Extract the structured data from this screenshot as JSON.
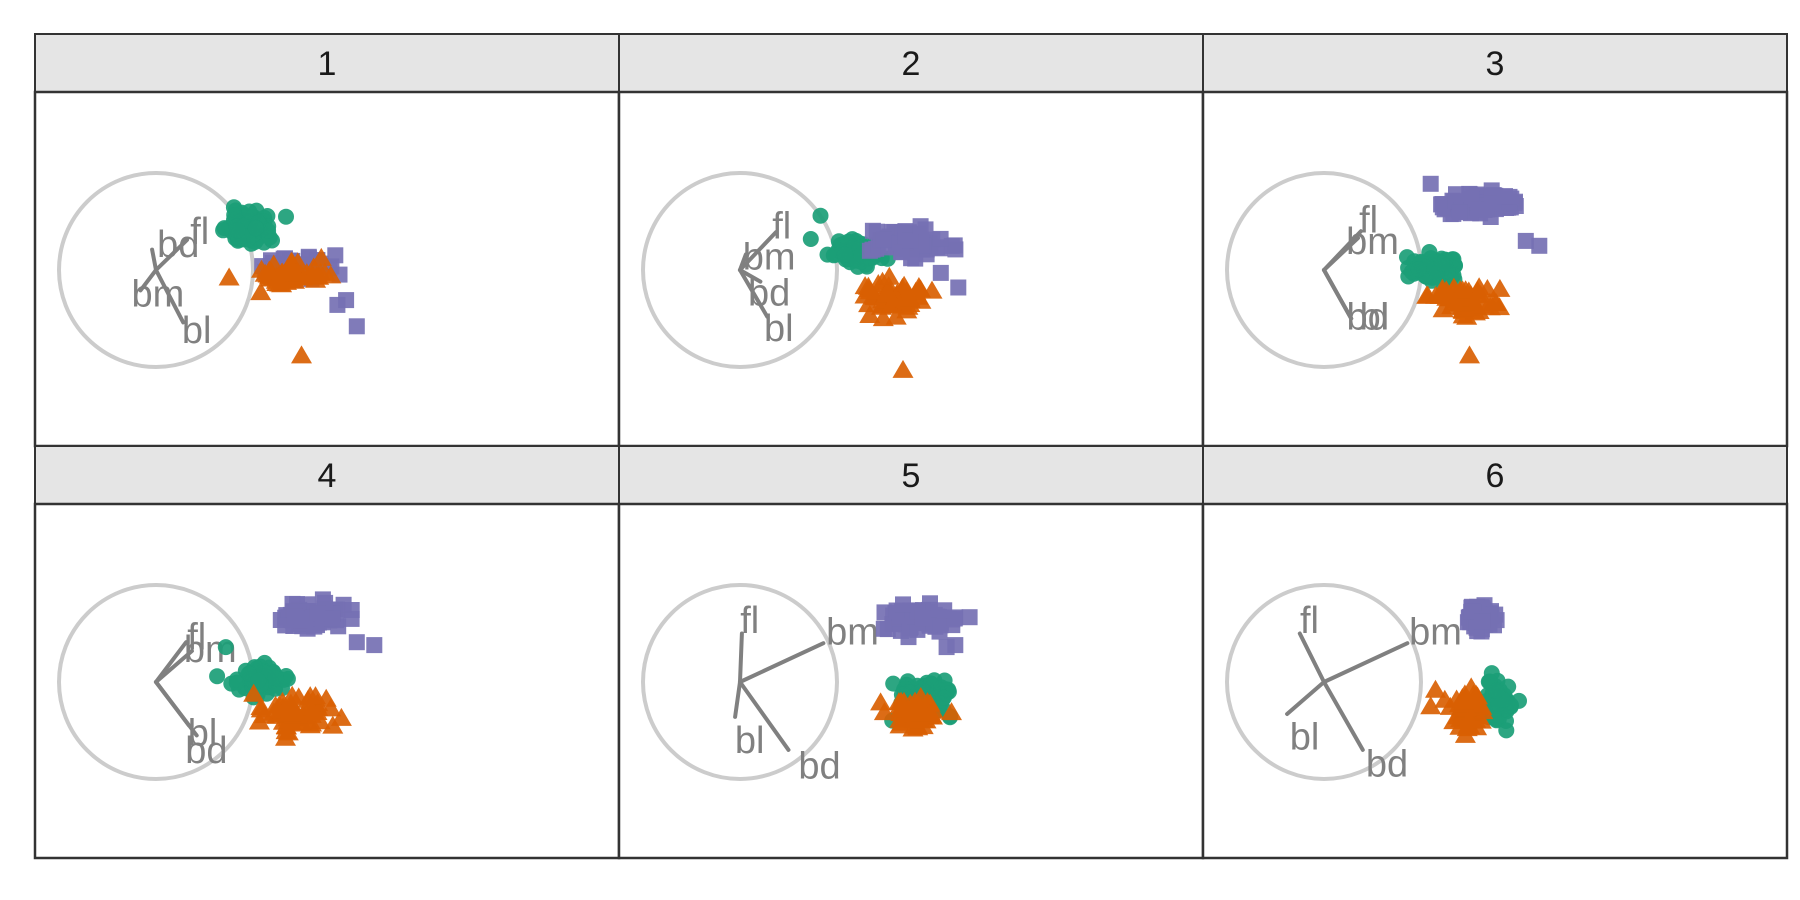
{
  "chart_data": {
    "type": "scatter",
    "facet_layout": "2x3",
    "x_range": [
      -1,
      1
    ],
    "y_range": [
      -1,
      1
    ],
    "grid": false,
    "legend": "none",
    "groups": [
      {
        "shape": "circle",
        "color": "#1b9e77"
      },
      {
        "shape": "triangle",
        "color": "#d95f02"
      },
      {
        "shape": "square",
        "color": "#7570b3"
      }
    ],
    "axis_circle_color": "#cccccc",
    "axis_line_color": "#808080",
    "panels": [
      {
        "label": "1",
        "axes": [
          {
            "name": "fl",
            "end": [
              0.32,
              0.31
            ],
            "label_pos": [
              0.45,
              0.4
            ]
          },
          {
            "name": "bd",
            "end": [
              -0.04,
              0.21
            ],
            "label_pos": [
              0.23,
              0.27
            ]
          },
          {
            "name": "bm",
            "end": [
              -0.16,
              -0.21
            ],
            "label_pos": [
              0.02,
              -0.24
            ]
          },
          {
            "name": "bl",
            "end": [
              0.28,
              -0.54
            ],
            "label_pos": [
              0.42,
              -0.62
            ]
          }
        ],
        "clusters": [
          {
            "group": 0,
            "center": [
              0.95,
              0.44
            ],
            "spread": [
              0.2,
              0.16
            ],
            "n": 95
          },
          {
            "group": 2,
            "center": [
              1.45,
              0.03
            ],
            "spread": [
              0.34,
              0.1
            ],
            "n": 60
          },
          {
            "group": 1,
            "center": [
              1.4,
              -0.05
            ],
            "spread": [
              0.3,
              0.12
            ],
            "n": 55
          }
        ],
        "extra_points": [
          {
            "group": 2,
            "x": [
              2.07,
              1.96,
              1.87
            ],
            "y": [
              -0.58,
              -0.31,
              -0.36
            ]
          },
          {
            "group": 1,
            "x": [
              1.5
            ],
            "y": [
              -0.88
            ]
          }
        ]
      },
      {
        "label": "2",
        "axes": [
          {
            "name": "fl",
            "end": [
              0.37,
              0.39
            ],
            "label_pos": [
              0.43,
              0.46
            ]
          },
          {
            "name": "bm",
            "end": [
              0.06,
              0.16
            ],
            "label_pos": [
              0.3,
              0.14
            ]
          },
          {
            "name": "bd",
            "end": [
              0.21,
              -0.12
            ],
            "label_pos": [
              0.3,
              -0.23
            ]
          },
          {
            "name": "bl",
            "end": [
              0.28,
              -0.48
            ],
            "label_pos": [
              0.4,
              -0.6
            ]
          }
        ],
        "clusters": [
          {
            "group": 0,
            "center": [
              1.2,
              0.18
            ],
            "spread": [
              0.22,
              0.12
            ],
            "n": 85
          },
          {
            "group": 2,
            "center": [
              1.72,
              0.28
            ],
            "spread": [
              0.3,
              0.13
            ],
            "n": 75
          },
          {
            "group": 1,
            "center": [
              1.63,
              -0.28
            ],
            "spread": [
              0.28,
              0.14
            ],
            "n": 60
          }
        ],
        "extra_points": [
          {
            "group": 2,
            "x": [
              2.25,
              2.07
            ],
            "y": [
              -0.18,
              -0.03
            ]
          },
          {
            "group": 0,
            "x": [
              0.83,
              0.73
            ],
            "y": [
              0.56,
              0.32
            ]
          },
          {
            "group": 1,
            "x": [
              1.68
            ],
            "y": [
              -1.03
            ]
          }
        ]
      },
      {
        "label": "3",
        "axes": [
          {
            "name": "fl",
            "end": [
              0.38,
              0.4
            ],
            "label_pos": [
              0.46,
              0.52
            ]
          },
          {
            "name": "bm",
            "end": [
              0.35,
              0.33
            ],
            "label_pos": [
              0.5,
              0.3
            ]
          },
          {
            "name": "bd",
            "end": [
              0.28,
              -0.5
            ],
            "label_pos": [
              0.45,
              -0.48
            ]
          },
          {
            "name": "bl",
            "end": [
              0.28,
              -0.5
            ],
            "label_pos": [
              0.52,
              -0.48
            ]
          }
        ],
        "clusters": [
          {
            "group": 2,
            "center": [
              1.62,
              0.68
            ],
            "spread": [
              0.32,
              0.12
            ],
            "n": 85
          },
          {
            "group": 0,
            "center": [
              1.15,
              0.0
            ],
            "spread": [
              0.22,
              0.12
            ],
            "n": 85
          },
          {
            "group": 1,
            "center": [
              1.45,
              -0.3
            ],
            "spread": [
              0.3,
              0.14
            ],
            "n": 60
          }
        ],
        "extra_points": [
          {
            "group": 2,
            "x": [
              2.22,
              2.08
            ],
            "y": [
              0.25,
              0.3
            ]
          },
          {
            "group": 1,
            "x": [
              1.5
            ],
            "y": [
              -0.88
            ]
          }
        ]
      },
      {
        "label": "4",
        "axes": [
          {
            "name": "fl",
            "end": [
              0.31,
              0.41
            ],
            "label_pos": [
              0.42,
              0.47
            ]
          },
          {
            "name": "bm",
            "end": [
              0.37,
              0.32
            ],
            "label_pos": [
              0.56,
              0.34
            ]
          },
          {
            "name": "bl",
            "end": [
              0.34,
              -0.45
            ],
            "label_pos": [
              0.48,
              -0.52
            ]
          },
          {
            "name": "bd",
            "end": [
              0.42,
              -0.55
            ],
            "label_pos": [
              0.52,
              -0.7
            ]
          }
        ],
        "clusters": [
          {
            "group": 2,
            "center": [
              1.6,
              0.68
            ],
            "spread": [
              0.34,
              0.13
            ],
            "n": 85
          },
          {
            "group": 0,
            "center": [
              1.1,
              0.03
            ],
            "spread": [
              0.22,
              0.12
            ],
            "n": 85
          },
          {
            "group": 1,
            "center": [
              1.4,
              -0.32
            ],
            "spread": [
              0.32,
              0.16
            ],
            "n": 65
          }
        ],
        "extra_points": [
          {
            "group": 2,
            "x": [
              2.25,
              2.07
            ],
            "y": [
              0.38,
              0.41
            ]
          },
          {
            "group": 0,
            "x": [
              0.72,
              0.63
            ],
            "y": [
              0.36,
              0.06
            ]
          }
        ]
      },
      {
        "label": "5",
        "axes": [
          {
            "name": "fl",
            "end": [
              0.02,
              0.5
            ],
            "label_pos": [
              0.1,
              0.64
            ]
          },
          {
            "name": "bm",
            "end": [
              0.86,
              0.4
            ],
            "label_pos": [
              1.16,
              0.52
            ]
          },
          {
            "name": "bl",
            "end": [
              -0.05,
              -0.36
            ],
            "label_pos": [
              0.1,
              -0.6
            ]
          },
          {
            "name": "bd",
            "end": [
              0.5,
              -0.7
            ],
            "label_pos": [
              0.82,
              -0.86
            ]
          }
        ],
        "clusters": [
          {
            "group": 2,
            "center": [
              1.85,
              0.65
            ],
            "spread": [
              0.28,
              0.12
            ],
            "n": 80
          },
          {
            "group": 0,
            "center": [
              1.92,
              -0.18
            ],
            "spread": [
              0.24,
              0.2
            ],
            "n": 90
          },
          {
            "group": 1,
            "center": [
              1.8,
              -0.32
            ],
            "spread": [
              0.2,
              0.16
            ],
            "n": 55
          }
        ],
        "extra_points": [
          {
            "group": 2,
            "x": [
              2.22,
              2.13,
              1.68
            ],
            "y": [
              0.38,
              0.36,
              0.8
            ]
          },
          {
            "group": 1,
            "x": [
              1.45,
              2.18
            ],
            "y": [
              -0.21,
              -0.31
            ]
          }
        ]
      },
      {
        "label": "6",
        "axes": [
          {
            "name": "fl",
            "end": [
              -0.25,
              0.5
            ],
            "label_pos": [
              -0.15,
              0.64
            ]
          },
          {
            "name": "bm",
            "end": [
              0.86,
              0.4
            ],
            "label_pos": [
              1.15,
              0.52
            ]
          },
          {
            "name": "bl",
            "end": [
              -0.38,
              -0.33
            ],
            "label_pos": [
              -0.2,
              -0.56
            ]
          },
          {
            "name": "bd",
            "end": [
              0.4,
              -0.7
            ],
            "label_pos": [
              0.65,
              -0.84
            ]
          }
        ],
        "clusters": [
          {
            "group": 2,
            "center": [
              1.62,
              0.68
            ],
            "spread": [
              0.12,
              0.12
            ],
            "n": 80
          },
          {
            "group": 0,
            "center": [
              1.8,
              -0.2
            ],
            "spread": [
              0.16,
              0.18
            ],
            "n": 90
          },
          {
            "group": 1,
            "center": [
              1.47,
              -0.3
            ],
            "spread": [
              0.15,
              0.18
            ],
            "n": 60
          }
        ],
        "extra_points": [
          {
            "group": 1,
            "x": [
              1.1,
              1.15
            ],
            "y": [
              -0.25,
              -0.08
            ]
          }
        ]
      }
    ]
  }
}
